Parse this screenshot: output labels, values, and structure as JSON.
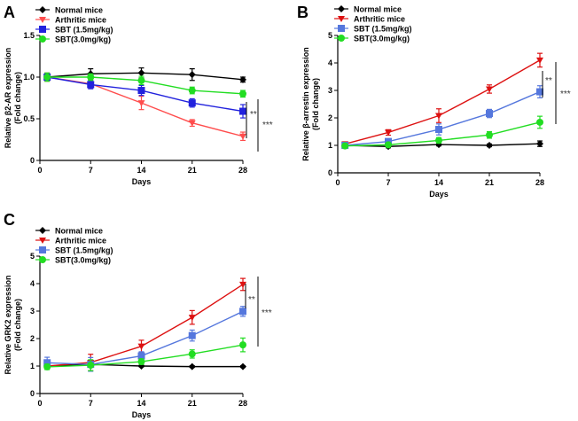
{
  "chart_data": [
    {
      "type": "line",
      "panel": "A",
      "ylabel_line1": "Relative β2-AR expression",
      "ylabel_line2": "(Fold change)",
      "xlabel": "Days",
      "x": [
        1,
        7,
        14,
        21,
        28
      ],
      "xticks": [
        "0",
        "7",
        "14",
        "21",
        "28"
      ],
      "ylim": [
        0,
        1.5
      ],
      "yticks": [
        "0",
        "0.5",
        "1.0",
        "1.5"
      ],
      "series": [
        {
          "name": "Normal mice",
          "color": "#000000",
          "marker": "diamond",
          "values": [
            1.0,
            1.04,
            1.05,
            1.03,
            0.97
          ],
          "err": [
            0.04,
            0.06,
            0.06,
            0.07,
            0.03
          ]
        },
        {
          "name": "Arthritic mice",
          "color": "#ff4d4d",
          "marker": "triangle-down",
          "values": [
            1.0,
            0.92,
            0.69,
            0.45,
            0.29
          ],
          "err": [
            0.05,
            0.05,
            0.08,
            0.04,
            0.05
          ]
        },
        {
          "name": "SBT (1.5mg/kg)",
          "color": "#2222dd",
          "marker": "square",
          "values": [
            1.0,
            0.91,
            0.84,
            0.69,
            0.59
          ],
          "err": [
            0.04,
            0.05,
            0.06,
            0.05,
            0.08
          ]
        },
        {
          "name": "SBT(3.0mg/kg)",
          "color": "#22dd22",
          "marker": "circle",
          "values": [
            1.0,
            1.0,
            0.96,
            0.84,
            0.8
          ],
          "err": [
            0.05,
            0.04,
            0.05,
            0.04,
            0.04
          ]
        }
      ],
      "significance": [
        "**",
        "***"
      ]
    },
    {
      "type": "line",
      "panel": "B",
      "ylabel_line1": "Relative β-arrestin expression",
      "ylabel_line2": "(Fold change)",
      "xlabel": "Days",
      "x": [
        1,
        7,
        14,
        21,
        28
      ],
      "xticks": [
        "0",
        "7",
        "14",
        "21",
        "28"
      ],
      "ylim": [
        0,
        5
      ],
      "yticks": [
        "0",
        "1",
        "2",
        "3",
        "4",
        "5"
      ],
      "series": [
        {
          "name": "Normal mice",
          "color": "#000000",
          "marker": "diamond",
          "values": [
            1.0,
            0.96,
            1.03,
            1.0,
            1.06
          ],
          "err": [
            0.06,
            0.05,
            0.05,
            0.05,
            0.1
          ]
        },
        {
          "name": "Arthritic mice",
          "color": "#dd1111",
          "marker": "triangle-down",
          "values": [
            1.05,
            1.47,
            2.08,
            3.05,
            4.1
          ],
          "err": [
            0.08,
            0.1,
            0.25,
            0.15,
            0.25
          ]
        },
        {
          "name": "SBT (1.5mg/kg)",
          "color": "#5577dd",
          "marker": "square",
          "values": [
            1.0,
            1.14,
            1.58,
            2.16,
            2.95
          ],
          "err": [
            0.08,
            0.1,
            0.2,
            0.15,
            0.22
          ]
        },
        {
          "name": "SBT(3.0mg/kg)",
          "color": "#22dd22",
          "marker": "circle",
          "values": [
            0.98,
            1.02,
            1.18,
            1.38,
            1.84
          ],
          "err": [
            0.06,
            0.08,
            0.1,
            0.12,
            0.22
          ]
        }
      ],
      "significance": [
        "**",
        "***"
      ]
    },
    {
      "type": "line",
      "panel": "C",
      "ylabel_line1": "Relative GRK2 expression",
      "ylabel_line2": "(Fold change)",
      "xlabel": "Days",
      "x": [
        1,
        7,
        14,
        21,
        28
      ],
      "xticks": [
        "0",
        "7",
        "14",
        "21",
        "28"
      ],
      "ylim": [
        0,
        5
      ],
      "yticks": [
        "0",
        "1",
        "2",
        "3",
        "4",
        "5"
      ],
      "series": [
        {
          "name": "Normal mice",
          "color": "#000000",
          "marker": "diamond",
          "values": [
            1.0,
            1.06,
            1.0,
            0.98,
            0.98
          ],
          "err": [
            0.04,
            0.05,
            0.03,
            0.03,
            0.03
          ]
        },
        {
          "name": "Arthritic mice",
          "color": "#dd1111",
          "marker": "triangle-down",
          "values": [
            1.0,
            1.13,
            1.72,
            2.77,
            3.97
          ],
          "err": [
            0.1,
            0.3,
            0.22,
            0.25,
            0.22
          ]
        },
        {
          "name": "SBT (1.5mg/kg)",
          "color": "#5577dd",
          "marker": "square",
          "values": [
            1.12,
            1.06,
            1.37,
            2.11,
            2.99
          ],
          "err": [
            0.2,
            0.25,
            0.15,
            0.2,
            0.18
          ]
        },
        {
          "name": "SBT(3.0mg/kg)",
          "color": "#22dd22",
          "marker": "circle",
          "values": [
            0.97,
            1.03,
            1.16,
            1.44,
            1.77
          ],
          "err": [
            0.1,
            0.2,
            0.1,
            0.15,
            0.25
          ]
        }
      ],
      "significance": [
        "**",
        "***"
      ]
    }
  ],
  "panel_letters": [
    "A",
    "B",
    "C"
  ]
}
